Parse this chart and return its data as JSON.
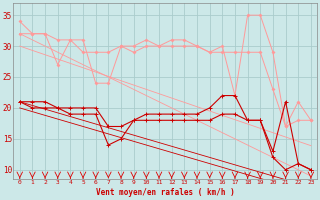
{
  "xlabel": "Vent moyen/en rafales ( km/h )",
  "bg_color": "#cce8e8",
  "grid_color": "#aacccc",
  "x": [
    0,
    1,
    2,
    3,
    4,
    5,
    6,
    7,
    8,
    9,
    10,
    11,
    12,
    13,
    14,
    15,
    16,
    17,
    18,
    19,
    20,
    21,
    22,
    23
  ],
  "line_raf1": [
    34,
    32,
    32,
    31,
    31,
    31,
    24,
    24,
    30,
    30,
    31,
    30,
    31,
    31,
    30,
    29,
    30,
    22,
    35,
    35,
    29,
    17,
    18,
    18
  ],
  "line_raf2": [
    32,
    32,
    32,
    27,
    31,
    29,
    29,
    29,
    30,
    29,
    30,
    30,
    30,
    30,
    30,
    29,
    29,
    29,
    29,
    29,
    23,
    17,
    21,
    18
  ],
  "line_raf_diag1": [
    32,
    31,
    30,
    29,
    28,
    27,
    26,
    25,
    24,
    23,
    22,
    21,
    20,
    19,
    18,
    17,
    16,
    15,
    14,
    13,
    12,
    11,
    10,
    9
  ],
  "line_raf_diag2": [
    30,
    29.3,
    28.6,
    27.9,
    27.2,
    26.5,
    25.8,
    25.1,
    24.4,
    23.7,
    23,
    22.3,
    21.6,
    20.9,
    20.2,
    19.5,
    18.8,
    18.1,
    17.4,
    16.7,
    16,
    15.3,
    14.6,
    13.9
  ],
  "line_vent1": [
    21,
    21,
    21,
    20,
    20,
    20,
    20,
    17,
    17,
    18,
    19,
    19,
    19,
    19,
    19,
    20,
    22,
    22,
    18,
    18,
    13,
    21,
    11,
    10
  ],
  "line_vent2": [
    21,
    20,
    20,
    20,
    19,
    19,
    19,
    14,
    15,
    18,
    18,
    18,
    18,
    18,
    18,
    18,
    19,
    19,
    18,
    18,
    12,
    10,
    11,
    10
  ],
  "line_vent_diag1": [
    21,
    20.4,
    19.8,
    19.2,
    18.6,
    18.0,
    17.4,
    16.8,
    16.2,
    15.6,
    15.0,
    14.4,
    13.8,
    13.2,
    12.6,
    12.0,
    11.4,
    10.8,
    10.2,
    9.6,
    9.0,
    8.4,
    7.8,
    7.2
  ],
  "line_vent_diag2": [
    20,
    19.4,
    18.8,
    18.2,
    17.6,
    17.0,
    16.4,
    15.8,
    15.2,
    14.6,
    14.0,
    13.4,
    12.8,
    12.2,
    11.6,
    11.0,
    10.4,
    9.8,
    9.2,
    8.6,
    8.0,
    7.4,
    6.8,
    6.2
  ],
  "color_light": "#ff9999",
  "color_dark": "#cc0000",
  "arrow_color": "#dd0000",
  "xlim": [
    -0.5,
    23.5
  ],
  "ylim": [
    8.5,
    37
  ]
}
